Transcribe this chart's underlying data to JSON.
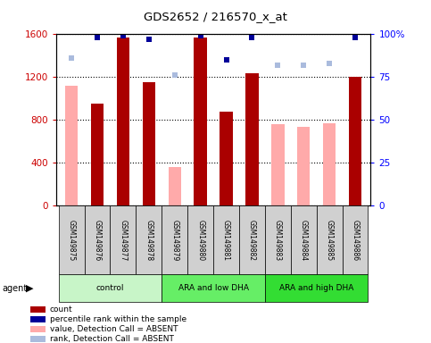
{
  "title": "GDS2652 / 216570_x_at",
  "samples": [
    "GSM149875",
    "GSM149876",
    "GSM149877",
    "GSM149878",
    "GSM149879",
    "GSM149880",
    "GSM149881",
    "GSM149882",
    "GSM149883",
    "GSM149884",
    "GSM149885",
    "GSM149886"
  ],
  "count_values": [
    null,
    950,
    1570,
    1150,
    null,
    1570,
    880,
    1240,
    null,
    null,
    null,
    1200
  ],
  "absent_value_values": [
    1120,
    null,
    null,
    null,
    360,
    null,
    null,
    null,
    760,
    740,
    770,
    null
  ],
  "percentile_present": [
    null,
    98,
    99,
    97,
    null,
    99,
    85,
    98,
    null,
    null,
    null,
    98
  ],
  "percentile_absent": [
    86,
    null,
    null,
    null,
    76,
    null,
    null,
    null,
    82,
    82,
    83,
    null
  ],
  "groups": [
    {
      "label": "control",
      "start": 0,
      "end": 3,
      "color": "#c8f5c8"
    },
    {
      "label": "ARA and low DHA",
      "start": 4,
      "end": 7,
      "color": "#55dd55"
    },
    {
      "label": "ARA and high DHA",
      "start": 8,
      "end": 11,
      "color": "#33cc33"
    }
  ],
  "ylim_left": [
    0,
    1600
  ],
  "ylim_right": [
    0,
    100
  ],
  "yticks_left": [
    0,
    400,
    800,
    1200,
    1600
  ],
  "yticks_right": [
    0,
    25,
    50,
    75,
    100
  ],
  "ytick_labels_left": [
    "0",
    "400",
    "800",
    "1200",
    "1600"
  ],
  "ytick_labels_right": [
    "0",
    "25",
    "50",
    "75",
    "100%"
  ],
  "count_color": "#aa0000",
  "absent_value_color": "#ffaaaa",
  "percentile_present_color": "#000099",
  "percentile_absent_color": "#aabbdd",
  "legend_items": [
    {
      "label": "count",
      "color": "#aa0000"
    },
    {
      "label": "percentile rank within the sample",
      "color": "#000099"
    },
    {
      "label": "value, Detection Call = ABSENT",
      "color": "#ffaaaa"
    },
    {
      "label": "rank, Detection Call = ABSENT",
      "color": "#aabbdd"
    }
  ],
  "fig_width": 4.83,
  "fig_height": 3.84,
  "dpi": 100
}
